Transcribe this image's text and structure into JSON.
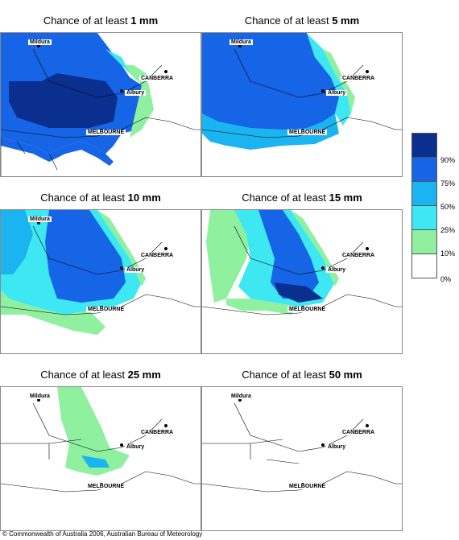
{
  "panels": [
    {
      "title_prefix": "Chance of at least ",
      "threshold": "1 mm"
    },
    {
      "title_prefix": "Chance of at least ",
      "threshold": "5 mm"
    },
    {
      "title_prefix": "Chance of at least ",
      "threshold": "10 mm"
    },
    {
      "title_prefix": "Chance of at least ",
      "threshold": "15 mm"
    },
    {
      "title_prefix": "Chance of at least ",
      "threshold": "25 mm"
    },
    {
      "title_prefix": "Chance of at least ",
      "threshold": "50 mm"
    }
  ],
  "places": {
    "mildura": "Mildura",
    "canberra": "CANBERRA",
    "albury": "Albury",
    "melbourne": "MELBOURNE"
  },
  "legend": {
    "labels": [
      "90%",
      "75%",
      "50%",
      "25%",
      "10%",
      "0%"
    ],
    "colors": [
      "#0a2f8f",
      "#1565e6",
      "#1ab4f0",
      "#3ee8f2",
      "#8ff0a0",
      "#ffffff"
    ]
  },
  "copyright": "© Commonwealth of Australia 2006, Australian Bureau of Meteorology"
}
